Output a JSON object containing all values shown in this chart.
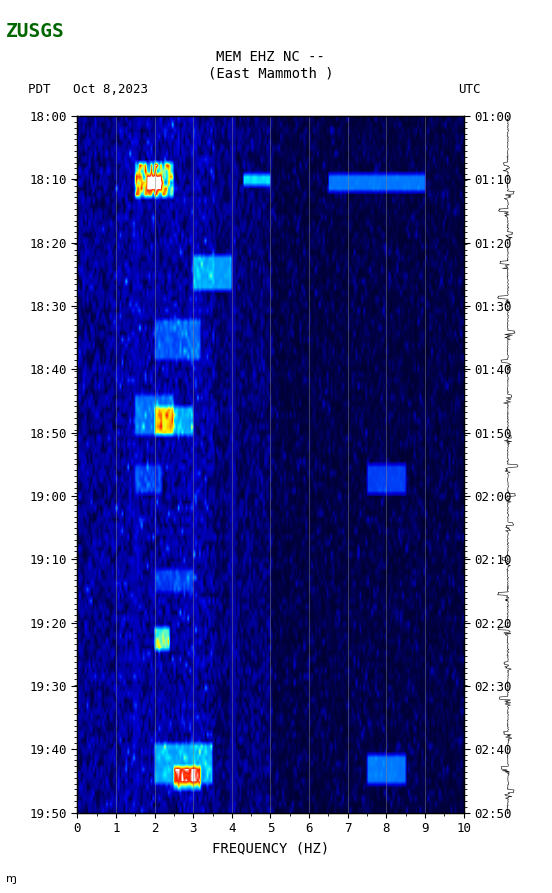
{
  "title_line1": "MEM EHZ NC --",
  "title_line2": "(East Mammoth )",
  "left_label": "PDT   Oct 8,2023",
  "right_label": "UTC",
  "xlabel": "FREQUENCY (HZ)",
  "x_ticks": [
    0,
    1,
    2,
    3,
    4,
    5,
    6,
    7,
    8,
    9,
    10
  ],
  "freq_min": 0,
  "freq_max": 10,
  "time_start_pdt": "18:00",
  "time_end_pdt": "19:50",
  "time_start_utc": "01:00",
  "time_end_utc": "02:50",
  "left_time_labels": [
    "18:00",
    "18:10",
    "18:20",
    "18:30",
    "18:40",
    "18:50",
    "19:00",
    "19:10",
    "19:20",
    "19:30",
    "19:40",
    "19:50"
  ],
  "right_time_labels": [
    "01:00",
    "01:10",
    "01:20",
    "01:30",
    "01:40",
    "01:50",
    "02:00",
    "02:10",
    "02:20",
    "02:30",
    "02:40",
    "02:50"
  ],
  "colormap_colors": [
    "#000033",
    "#000080",
    "#0000cd",
    "#0000ff",
    "#0040ff",
    "#0080ff",
    "#00bfff",
    "#00ffff",
    "#80ff80",
    "#ffff00",
    "#ff8000",
    "#ff0000",
    "#ffffff"
  ],
  "background_color": "#ffffff",
  "spectrogram_bg": "#000066",
  "fig_width": 5.52,
  "fig_height": 8.93,
  "dpi": 100,
  "vertical_lines_freq": [
    1,
    2,
    3,
    4,
    5,
    6,
    7,
    8,
    9
  ],
  "n_time": 120,
  "n_freq": 200,
  "usgs_logo_color": "#006600"
}
